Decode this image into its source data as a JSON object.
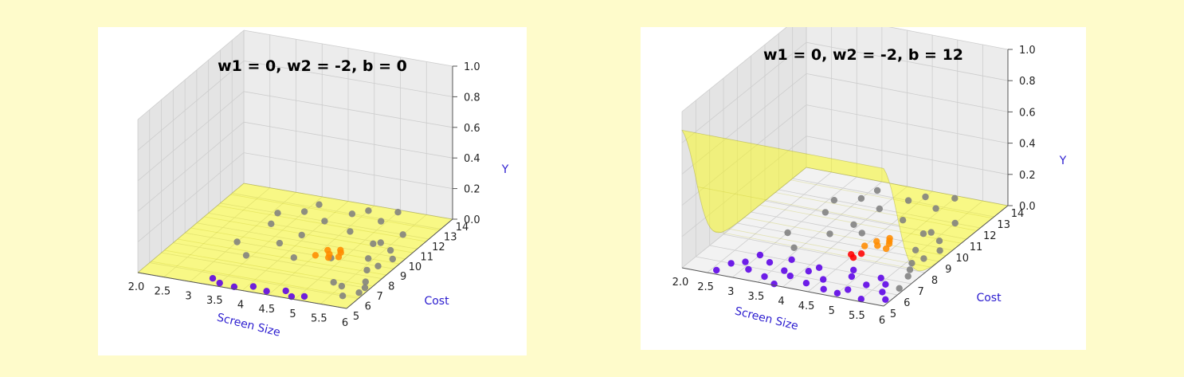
{
  "colors": {
    "page_background": "#fefbcb",
    "surface": "#ffff00",
    "surface_edge": "#8c8c00",
    "class_negative": "#5b00e6",
    "class_mid": "#808080",
    "class_orange": "#ff8c00",
    "class_red": "#ff0000",
    "axis_label": "#2b1ccf"
  },
  "chart_data": [
    {
      "type": "scatter",
      "title": "w1 = 0, w2 = -2, b = 0",
      "xlabel": "Screen Size",
      "ylabel": "Cost",
      "zlabel": "Y",
      "x_ticks": [
        "2.0",
        "2.5",
        "3",
        "3.5",
        "4",
        "4.5",
        "5",
        "5.5",
        "6"
      ],
      "y_ticks": [
        "5",
        "6",
        "7",
        "8",
        "9",
        "10",
        "11",
        "12",
        "13",
        "14"
      ],
      "z_ticks": [
        "0.0",
        "0.2",
        "0.4",
        "0.6",
        "0.8",
        "1.0"
      ],
      "xlim": [
        2.0,
        6.0
      ],
      "ylim": [
        5,
        14
      ],
      "zlim": [
        0.0,
        1.0
      ],
      "grid": true,
      "surface": {
        "w1": 0,
        "w2": -2,
        "b": 0
      },
      "series": [
        {
          "color": "#5b00e6",
          "points": [
            [
              3.5,
              5.3,
              0
            ],
            [
              3.8,
              5.2,
              0
            ],
            [
              4.1,
              5.5,
              0
            ],
            [
              4.4,
              5.3,
              0
            ],
            [
              4.7,
              5.6,
              0
            ],
            [
              4.9,
              5.2,
              0
            ],
            [
              5.1,
              5.4,
              0
            ],
            [
              3.3,
              5.6,
              0
            ]
          ]
        },
        {
          "color": "#808080",
          "points": [
            [
              3.2,
              11.0,
              0
            ],
            [
              3.5,
              12.5,
              0
            ],
            [
              3.9,
              10.5,
              0
            ],
            [
              4.3,
              13.0,
              0
            ],
            [
              4.6,
              11.5,
              0
            ],
            [
              4.9,
              12.8,
              0
            ],
            [
              5.2,
              10.8,
              0
            ],
            [
              5.5,
              12.0,
              0
            ],
            [
              5.7,
              9.0,
              0
            ],
            [
              5.8,
              7.5,
              0
            ],
            [
              5.6,
              8.5,
              0
            ],
            [
              5.9,
              6.5,
              0
            ],
            [
              5.4,
              9.5,
              0
            ],
            [
              5.7,
              6.0,
              0
            ],
            [
              5.3,
              7.0,
              0
            ],
            [
              3.0,
              9.0,
              0
            ],
            [
              3.4,
              8.0,
              0
            ],
            [
              3.7,
              9.5,
              0
            ],
            [
              4.0,
              12.0,
              0
            ],
            [
              4.2,
              8.5,
              0
            ],
            [
              4.5,
              13.5,
              0
            ],
            [
              5.0,
              13.8,
              0
            ],
            [
              5.3,
              11.0,
              0
            ],
            [
              3.6,
              13.3,
              0
            ],
            [
              5.9,
              7.0,
              0
            ],
            [
              5.8,
              9.8,
              0
            ],
            [
              5.6,
              10.5,
              0
            ],
            [
              5.5,
              6.8,
              0
            ],
            [
              3.1,
              12.0,
              0
            ],
            [
              4.8,
              9.0,
              0
            ]
          ]
        },
        {
          "color": "#ff8c00",
          "points": [
            [
              4.6,
              9.6,
              0
            ],
            [
              4.7,
              9.3,
              0
            ],
            [
              4.75,
              9.0,
              0
            ],
            [
              4.8,
              9.8,
              0
            ],
            [
              4.9,
              9.2,
              0
            ],
            [
              4.5,
              9.0,
              0
            ],
            [
              4.85,
              9.6,
              0
            ]
          ]
        }
      ]
    },
    {
      "type": "scatter",
      "title": "w1 = 0, w2 = -2, b = 12",
      "xlabel": "Screen Size",
      "ylabel": "Cost",
      "zlabel": "Y",
      "x_ticks": [
        "2.0",
        "2.5",
        "3",
        "3.5",
        "4",
        "4.5",
        "5",
        "5.5",
        "6"
      ],
      "y_ticks": [
        "5",
        "6",
        "7",
        "8",
        "9",
        "10",
        "11",
        "12",
        "13",
        "14"
      ],
      "z_ticks": [
        "0.0",
        "0.2",
        "0.4",
        "0.6",
        "0.8",
        "1.0"
      ],
      "xlim": [
        2.0,
        6.0
      ],
      "ylim": [
        5,
        14
      ],
      "zlim": [
        0.0,
        1.0
      ],
      "grid": true,
      "surface": {
        "w1": 0,
        "w2": -2,
        "b": 12
      },
      "series": [
        {
          "color": "#5b00e6",
          "points": [
            [
              2.7,
              6.0,
              0
            ],
            [
              2.9,
              6.3,
              0
            ],
            [
              3.1,
              5.8,
              0
            ],
            [
              3.3,
              6.6,
              0
            ],
            [
              3.5,
              5.5,
              0
            ],
            [
              3.7,
              6.2,
              0
            ],
            [
              3.9,
              5.9,
              0
            ],
            [
              4.1,
              6.5,
              0
            ],
            [
              4.3,
              5.6,
              0
            ],
            [
              4.5,
              6.1,
              0
            ],
            [
              4.7,
              5.4,
              0
            ],
            [
              4.9,
              6.7,
              0
            ],
            [
              5.1,
              5.7,
              0
            ],
            [
              5.3,
              6.3,
              0
            ],
            [
              5.5,
              5.2,
              0
            ],
            [
              5.7,
              6.0,
              0
            ],
            [
              5.9,
              5.5,
              0
            ],
            [
              3.0,
              7.0,
              0
            ],
            [
              3.6,
              7.1,
              0
            ],
            [
              4.2,
              6.9,
              0
            ],
            [
              4.8,
              7.2,
              0
            ],
            [
              5.4,
              7.0,
              0
            ],
            [
              2.6,
              5.3,
              0
            ],
            [
              3.8,
              5.1,
              0
            ],
            [
              5.0,
              5.3,
              0
            ],
            [
              5.6,
              6.6,
              0
            ]
          ]
        },
        {
          "color": "#808080",
          "points": [
            [
              3.2,
              11.0,
              0
            ],
            [
              3.5,
              12.5,
              0
            ],
            [
              3.9,
              10.5,
              0
            ],
            [
              4.3,
              13.0,
              0
            ],
            [
              4.6,
              11.5,
              0
            ],
            [
              4.9,
              12.8,
              0
            ],
            [
              5.2,
              10.8,
              0
            ],
            [
              5.5,
              12.0,
              0
            ],
            [
              5.7,
              9.0,
              0
            ],
            [
              5.8,
              7.5,
              0
            ],
            [
              5.6,
              8.5,
              0
            ],
            [
              5.9,
              6.5,
              0
            ],
            [
              5.4,
              9.5,
              0
            ],
            [
              5.7,
              8.0,
              0
            ],
            [
              3.0,
              9.0,
              0
            ],
            [
              3.4,
              8.0,
              0
            ],
            [
              3.7,
              9.5,
              0
            ],
            [
              4.0,
              12.0,
              0
            ],
            [
              4.5,
              13.5,
              0
            ],
            [
              5.0,
              13.8,
              0
            ],
            [
              5.3,
              11.0,
              0
            ],
            [
              3.6,
              13.3,
              0
            ],
            [
              5.8,
              9.8,
              0
            ],
            [
              5.6,
              10.5,
              0
            ],
            [
              3.1,
              12.0,
              0
            ],
            [
              4.2,
              10.0,
              0
            ]
          ]
        },
        {
          "color": "#ff8c00",
          "points": [
            [
              4.6,
              9.6,
              0
            ],
            [
              4.7,
              9.3,
              0
            ],
            [
              4.8,
              9.8,
              0
            ],
            [
              4.9,
              9.2,
              0
            ],
            [
              4.5,
              9.1,
              0
            ],
            [
              4.85,
              9.6,
              0
            ],
            [
              4.75,
              10.0,
              0
            ]
          ]
        },
        {
          "color": "#ff0000",
          "points": [
            [
              4.45,
              8.3,
              0
            ],
            [
              4.55,
              8.1,
              0
            ],
            [
              4.6,
              8.5,
              0
            ]
          ]
        }
      ]
    }
  ]
}
